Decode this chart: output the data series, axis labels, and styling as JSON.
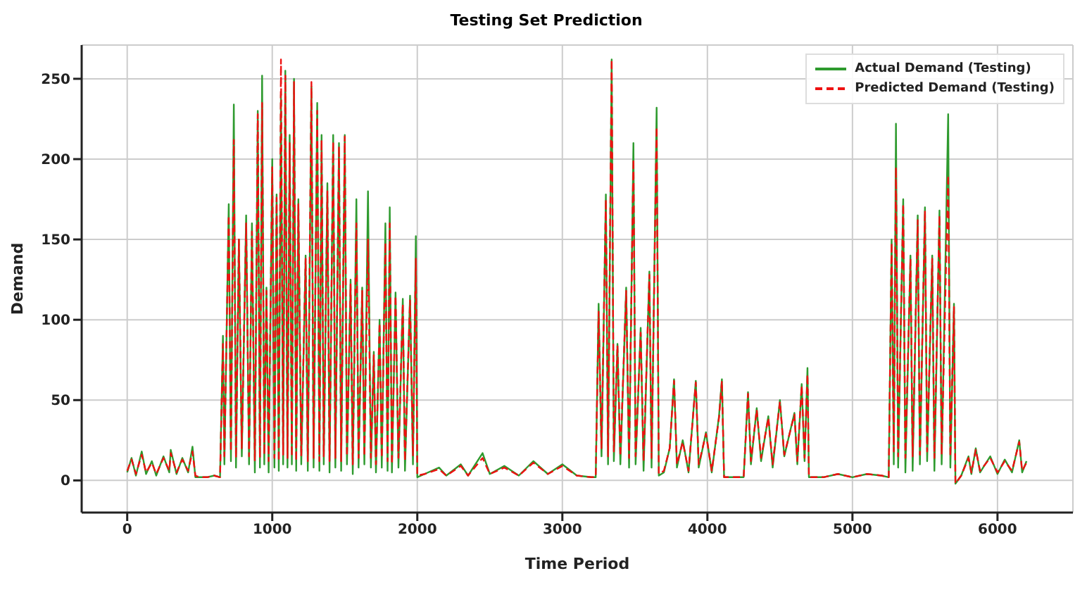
{
  "chart_data": {
    "type": "line",
    "title": "Testing Set Prediction",
    "xlabel": "Time Period",
    "ylabel": "Demand",
    "x": [
      0,
      30,
      60,
      100,
      130,
      170,
      200,
      250,
      290,
      300,
      340,
      380,
      420,
      450,
      470,
      500,
      550,
      600,
      640,
      660,
      670,
      700,
      715,
      735,
      750,
      770,
      790,
      820,
      840,
      860,
      880,
      900,
      915,
      930,
      945,
      960,
      975,
      1000,
      1015,
      1030,
      1045,
      1060,
      1075,
      1090,
      1105,
      1120,
      1135,
      1150,
      1165,
      1180,
      1200,
      1230,
      1245,
      1270,
      1285,
      1310,
      1325,
      1340,
      1355,
      1380,
      1395,
      1420,
      1435,
      1460,
      1475,
      1500,
      1515,
      1540,
      1555,
      1580,
      1595,
      1620,
      1635,
      1660,
      1680,
      1700,
      1715,
      1740,
      1755,
      1780,
      1795,
      1810,
      1825,
      1850,
      1870,
      1900,
      1915,
      1950,
      1970,
      1990,
      2000,
      2050,
      2150,
      2200,
      2300,
      2350,
      2450,
      2500,
      2600,
      2700,
      2800,
      2900,
      3000,
      3100,
      3200,
      3230,
      3250,
      3270,
      3300,
      3315,
      3340,
      3355,
      3380,
      3400,
      3440,
      3460,
      3490,
      3505,
      3540,
      3560,
      3600,
      3615,
      3650,
      3665,
      3700,
      3740,
      3770,
      3790,
      3830,
      3870,
      3920,
      3940,
      3990,
      4030,
      4080,
      4100,
      4115,
      4250,
      4280,
      4300,
      4340,
      4370,
      4420,
      4450,
      4500,
      4530,
      4600,
      4620,
      4650,
      4670,
      4690,
      4700,
      4800,
      4900,
      5000,
      5100,
      5200,
      5250,
      5270,
      5285,
      5300,
      5315,
      5350,
      5365,
      5400,
      5415,
      5450,
      5465,
      5500,
      5515,
      5550,
      5565,
      5600,
      5615,
      5660,
      5675,
      5700,
      5710,
      5750,
      5800,
      5820,
      5850,
      5880,
      5950,
      6000,
      6050,
      6100,
      6150,
      6170,
      6200
    ],
    "series": [
      {
        "name": "Actual Demand (Testing)",
        "color": "#2e9a2e",
        "line_style": "solid",
        "values": [
          5,
          14,
          3,
          18,
          4,
          12,
          3,
          15,
          5,
          19,
          4,
          14,
          5,
          21,
          2,
          2,
          2,
          3,
          2,
          90,
          10,
          172,
          12,
          234,
          8,
          150,
          15,
          165,
          10,
          160,
          5,
          230,
          8,
          252,
          10,
          120,
          5,
          200,
          8,
          178,
          6,
          240,
          10,
          255,
          8,
          215,
          10,
          250,
          6,
          175,
          10,
          140,
          6,
          245,
          8,
          235,
          6,
          215,
          10,
          185,
          5,
          215,
          8,
          210,
          6,
          215,
          10,
          125,
          4,
          175,
          8,
          120,
          10,
          180,
          8,
          80,
          5,
          100,
          8,
          160,
          6,
          170,
          5,
          117,
          8,
          113,
          6,
          115,
          10,
          152,
          2,
          4,
          8,
          3,
          10,
          3,
          17,
          4,
          9,
          3,
          12,
          4,
          10,
          3,
          2,
          2,
          110,
          15,
          178,
          10,
          262,
          12,
          85,
          10,
          120,
          8,
          210,
          10,
          95,
          6,
          130,
          8,
          232,
          3,
          5,
          20,
          63,
          8,
          25,
          5,
          62,
          8,
          30,
          5,
          40,
          63,
          2,
          2,
          55,
          10,
          45,
          12,
          40,
          8,
          50,
          15,
          42,
          10,
          60,
          12,
          70,
          2,
          2,
          4,
          2,
          4,
          3,
          2,
          150,
          10,
          222,
          8,
          175,
          5,
          140,
          6,
          165,
          10,
          170,
          12,
          140,
          6,
          168,
          10,
          228,
          8,
          110,
          -2,
          3,
          15,
          4,
          20,
          5,
          15,
          4,
          13,
          5,
          25,
          5,
          12
        ]
      },
      {
        "name": "Predicted Demand (Testing)",
        "color": "#ee1111",
        "line_style": "dashed",
        "values": [
          6,
          13,
          4,
          16,
          5,
          11,
          4,
          14,
          6,
          17,
          5,
          13,
          6,
          18,
          3,
          2,
          2,
          3,
          2,
          85,
          15,
          165,
          18,
          212,
          14,
          150,
          20,
          160,
          15,
          155,
          12,
          228,
          14,
          235,
          16,
          118,
          12,
          195,
          14,
          176,
          12,
          262,
          16,
          252,
          14,
          210,
          15,
          248,
          12,
          172,
          15,
          138,
          12,
          248,
          14,
          230,
          12,
          212,
          15,
          180,
          12,
          211,
          14,
          208,
          12,
          214,
          15,
          122,
          10,
          160,
          14,
          118,
          15,
          150,
          14,
          78,
          10,
          98,
          14,
          148,
          12,
          160,
          10,
          115,
          14,
          110,
          12,
          112,
          15,
          138,
          3,
          4,
          7,
          3,
          9,
          3,
          14,
          4,
          8,
          3,
          11,
          4,
          9,
          3,
          2,
          2,
          105,
          20,
          175,
          15,
          262,
          18,
          84,
          15,
          118,
          14,
          200,
          15,
          92,
          12,
          128,
          14,
          220,
          4,
          6,
          20,
          62,
          10,
          24,
          6,
          61,
          10,
          29,
          6,
          39,
          62,
          2,
          2,
          54,
          12,
          44,
          14,
          39,
          10,
          49,
          16,
          41,
          12,
          59,
          14,
          66,
          2,
          2,
          4,
          2,
          4,
          3,
          2,
          148,
          18,
          195,
          15,
          172,
          14,
          138,
          15,
          162,
          16,
          168,
          18,
          138,
          14,
          165,
          16,
          190,
          15,
          108,
          -2,
          3,
          14,
          5,
          19,
          6,
          14,
          5,
          12,
          6,
          24,
          6,
          11
        ]
      }
    ],
    "xlim": [
      -314,
      6520
    ],
    "xticks": [
      0,
      1000,
      2000,
      3000,
      4000,
      5000,
      6000
    ],
    "ylim": [
      -20,
      271
    ],
    "yticks": [
      0,
      50,
      100,
      150,
      200,
      250
    ],
    "grid": true,
    "legend": "top right"
  }
}
